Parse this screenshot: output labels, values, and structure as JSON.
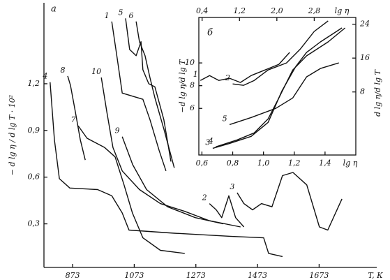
{
  "chart_data": [
    {
      "type": "line",
      "panel": "а",
      "x_label": "T, К",
      "y_label": "− d lg η / d lg T · 10²",
      "color": "#111",
      "xlim": [
        780,
        1860
      ],
      "ylim": [
        0.02,
        1.72
      ],
      "xticks": [
        873,
        1073,
        1273,
        1473,
        1673
      ],
      "yticks": [
        {
          "value": 0.3,
          "label": "0,3"
        },
        {
          "value": 0.6,
          "label": "0,6"
        },
        {
          "value": 0.9,
          "label": "0,9"
        },
        {
          "value": 1.2,
          "label": "1,2"
        }
      ],
      "series": [
        {
          "name": "4",
          "x": [
            800,
            814,
            830,
            864,
            954,
            1000,
            1034,
            1056,
            1203,
            1384,
            1493,
            1509,
            1554
          ],
          "values": [
            1.21,
            0.84,
            0.59,
            0.53,
            0.52,
            0.48,
            0.37,
            0.26,
            0.24,
            0.22,
            0.21,
            0.11,
            0.09
          ]
        },
        {
          "name": "8",
          "x": [
            857,
            866,
            882,
            898,
            914
          ],
          "values": [
            1.25,
            1.19,
            1.02,
            0.84,
            0.71
          ]
        },
        {
          "name": "7",
          "x": [
            891,
            920,
            977,
            1011,
            1040,
            1067,
            1101,
            1158,
            1237
          ],
          "values": [
            0.93,
            0.85,
            0.79,
            0.73,
            0.55,
            0.37,
            0.21,
            0.13,
            0.11
          ]
        },
        {
          "name": "10",
          "x": [
            966,
            984,
            1004,
            1034,
            1090,
            1158,
            1237,
            1317,
            1418
          ],
          "values": [
            1.24,
            1.02,
            0.79,
            0.64,
            0.52,
            0.43,
            0.38,
            0.32,
            0.28
          ]
        },
        {
          "name": "9",
          "x": [
            1034,
            1068,
            1113,
            1181,
            1271,
            1362
          ],
          "values": [
            0.86,
            0.68,
            0.52,
            0.41,
            0.34,
            0.3
          ]
        },
        {
          "name": "1",
          "x": [
            1000,
            1018,
            1034,
            1068,
            1101,
            1124,
            1154,
            1176
          ],
          "values": [
            1.6,
            1.36,
            1.14,
            1.12,
            1.1,
            0.97,
            0.77,
            0.64
          ]
        },
        {
          "name": "5",
          "x": [
            1045,
            1058,
            1079,
            1095,
            1101,
            1120,
            1140,
            1169,
            1192
          ],
          "values": [
            1.62,
            1.42,
            1.38,
            1.47,
            1.29,
            1.2,
            1.18,
            0.97,
            0.7
          ]
        },
        {
          "name": "6",
          "x": [
            1079,
            1090,
            1108,
            1124,
            1140,
            1169,
            1203
          ],
          "values": [
            1.6,
            1.47,
            1.38,
            1.24,
            1.11,
            0.91,
            0.66
          ]
        },
        {
          "name": "2",
          "x": [
            1317,
            1339,
            1357,
            1380,
            1402,
            1429
          ],
          "values": [
            0.43,
            0.39,
            0.34,
            0.48,
            0.34,
            0.28
          ]
        },
        {
          "name": "3",
          "x": [
            1407,
            1429,
            1457,
            1486,
            1520,
            1554,
            1588,
            1633,
            1674,
            1701,
            1747
          ],
          "values": [
            0.5,
            0.43,
            0.39,
            0.43,
            0.41,
            0.61,
            0.63,
            0.55,
            0.28,
            0.26,
            0.46
          ]
        }
      ]
    },
    {
      "type": "line",
      "panel": "б",
      "x_label": "lg η",
      "x2_label": "lg η",
      "y_label": "−d lg η/d lg T",
      "y2_label": "d lg η/d lg T",
      "color": "#111",
      "xlim": [
        0.58,
        1.6
      ],
      "x2lim": [
        0.33,
        3.69
      ],
      "ylim": [
        1.9,
        14
      ],
      "y2lim": [
        -6.9,
        25.6
      ],
      "xticks": [
        {
          "value": 0.6,
          "label": "0,6"
        },
        {
          "value": 0.8,
          "label": "0,8"
        },
        {
          "value": 1.0,
          "label": "1,0"
        },
        {
          "value": 1.2,
          "label": "1,2"
        },
        {
          "value": 1.4,
          "label": "1,4"
        }
      ],
      "x2ticks": [
        {
          "value": 0.4,
          "label": "0,4"
        },
        {
          "value": 1.2,
          "label": "1,2"
        },
        {
          "value": 2.0,
          "label": "2,0"
        },
        {
          "value": 2.8,
          "label": "2,8"
        }
      ],
      "yticks": [
        6,
        8,
        10
      ],
      "y2ticks": [
        8,
        16,
        24
      ],
      "series": [
        {
          "name": "1",
          "x": [
            0.59,
            0.65,
            0.71,
            0.78,
            0.85,
            0.92,
            1.01,
            1.1,
            1.17
          ],
          "values": [
            8.46,
            8.89,
            8.46,
            8.65,
            8.28,
            8.89,
            9.38,
            9.88,
            10.92
          ]
        },
        {
          "name": "2",
          "x": [
            0.8,
            0.87,
            0.94,
            1.03,
            1.15,
            1.24,
            1.33,
            1.42
          ],
          "values": [
            8.15,
            8.03,
            8.46,
            9.38,
            10.0,
            11.23,
            12.77,
            13.7
          ]
        },
        {
          "name": "3",
          "x": [
            0.67,
            0.78,
            0.92,
            1.03,
            1.12,
            1.21,
            1.28,
            1.37,
            1.51
          ],
          "values": [
            2.49,
            2.92,
            3.54,
            4.77,
            7.54,
            9.69,
            10.92,
            11.85,
            13.08
          ]
        },
        {
          "name": "4",
          "x": [
            0.69,
            0.83,
            0.94,
            1.03,
            1.1,
            1.19,
            1.28,
            1.42,
            1.53
          ],
          "values": [
            2.62,
            3.23,
            3.85,
            5.08,
            6.92,
            9.38,
            10.62,
            11.85,
            13.08
          ]
        },
        {
          "name": "5",
          "x": [
            0.78,
            0.92,
            1.08,
            1.19,
            1.28,
            1.37,
            1.49
          ],
          "values": [
            4.58,
            5.2,
            6.0,
            6.92,
            8.77,
            9.51,
            10.0
          ]
        }
      ]
    }
  ]
}
